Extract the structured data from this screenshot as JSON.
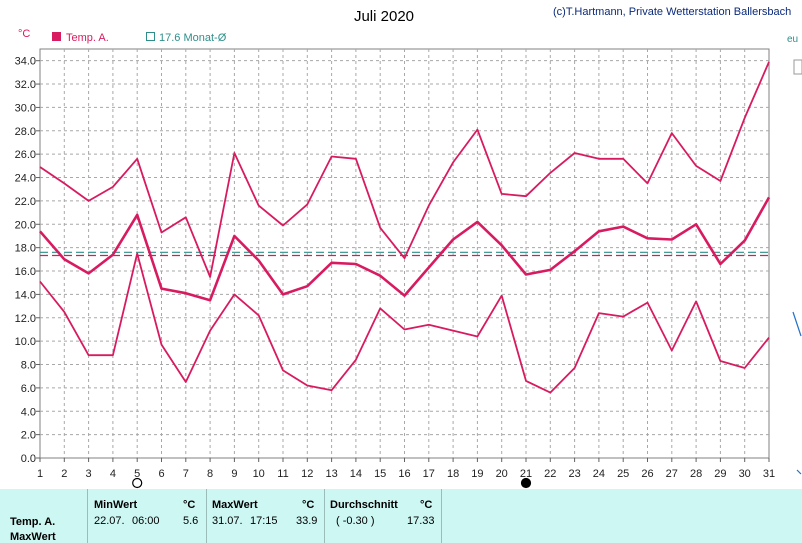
{
  "chart_data": {
    "type": "line",
    "title": "Juli 2020",
    "credit": "(c)T.Hartmann, Private Wetterstation Ballersbach",
    "ylabel": "°C",
    "ylim": [
      0,
      35
    ],
    "yticks": [
      "0.0",
      "2.0",
      "4.0",
      "6.0",
      "8.0",
      "10.0",
      "12.0",
      "14.0",
      "16.0",
      "18.0",
      "20.0",
      "22.0",
      "24.0",
      "26.0",
      "28.0",
      "30.0",
      "32.0",
      "34.0"
    ],
    "x": [
      1,
      2,
      3,
      4,
      5,
      6,
      7,
      8,
      9,
      10,
      11,
      12,
      13,
      14,
      15,
      16,
      17,
      18,
      19,
      20,
      21,
      22,
      23,
      24,
      25,
      26,
      27,
      28,
      29,
      30,
      31
    ],
    "grid": true,
    "legend": [
      {
        "label": "Temp. A.",
        "color": "#d81b60"
      },
      {
        "label": "17.6 Monat-Ø",
        "color": "#2e8f8a"
      }
    ],
    "series": [
      {
        "name": "Temp. A.",
        "role": "max",
        "color": "#d81b60",
        "values": [
          24.9,
          23.5,
          22.0,
          23.2,
          25.6,
          19.3,
          20.6,
          15.5,
          26.1,
          21.6,
          19.9,
          21.7,
          25.8,
          25.6,
          19.7,
          17.1,
          21.6,
          25.3,
          28.1,
          22.6,
          22.4,
          24.4,
          26.1,
          25.6,
          25.6,
          23.5,
          27.8,
          25.0,
          23.7,
          29.1,
          33.9
        ]
      },
      {
        "name": "Temp. A.",
        "role": "avg",
        "color": "#d81b60",
        "values": [
          19.4,
          17.0,
          15.8,
          17.4,
          20.8,
          14.5,
          14.1,
          13.5,
          19.0,
          16.9,
          14.0,
          14.7,
          16.7,
          16.6,
          15.6,
          13.9,
          16.3,
          18.7,
          20.2,
          18.2,
          15.7,
          16.1,
          17.7,
          19.4,
          19.8,
          18.8,
          18.7,
          20.0,
          16.6,
          18.6,
          22.3
        ]
      },
      {
        "name": "Temp. A.",
        "role": "min",
        "color": "#d81b60",
        "values": [
          15.1,
          12.5,
          8.8,
          8.8,
          17.5,
          9.7,
          6.5,
          10.9,
          14.0,
          12.2,
          7.5,
          6.2,
          5.8,
          8.4,
          12.8,
          11.0,
          11.4,
          10.9,
          10.4,
          13.9,
          6.6,
          5.6,
          7.7,
          12.4,
          12.1,
          13.3,
          9.2,
          13.4,
          8.3,
          7.7,
          10.3
        ]
      }
    ],
    "reference_lines": [
      {
        "name": "17.6 Monat-Ø",
        "value": 17.6,
        "color": "#2e8f8a",
        "style": "dashed"
      },
      {
        "name": "Temp. A. Durchschnitt",
        "value": 17.33,
        "color": "#d81b60",
        "style": "dashed"
      }
    ],
    "moon_markers": [
      {
        "x": 5,
        "phase": "full"
      },
      {
        "x": 21,
        "phase": "new"
      }
    ]
  },
  "stats": {
    "row1_label": "Temp. A.",
    "row2_label": "MaxWert",
    "min": {
      "header": "MinWert",
      "unit": "°C",
      "date": "22.07.",
      "time": "06:00",
      "value": "5.6"
    },
    "max": {
      "header": "MaxWert",
      "unit": "°C",
      "date": "31.07.",
      "time": "17:15",
      "value": "33.9"
    },
    "avg": {
      "header": "Durchschnitt",
      "unit": "°C",
      "delta": "( -0.30 )",
      "value": "17.33"
    }
  }
}
